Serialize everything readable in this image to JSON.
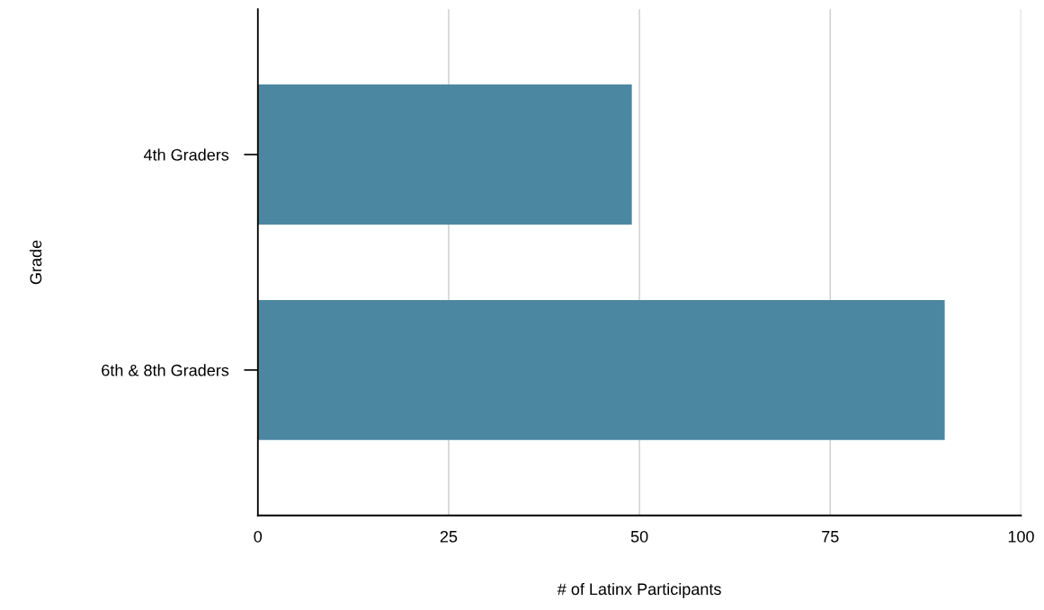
{
  "chart_data": {
    "type": "bar",
    "orientation": "horizontal",
    "xlabel": "# of Latinx Participants",
    "ylabel": "Grade",
    "categories": [
      "4th Graders",
      "6th & 8th Graders"
    ],
    "values": [
      49,
      90
    ],
    "color": "#4c87a2",
    "xlim": [
      0,
      100
    ],
    "xticks": [
      0,
      25,
      50,
      75,
      100
    ],
    "grid": "x"
  }
}
